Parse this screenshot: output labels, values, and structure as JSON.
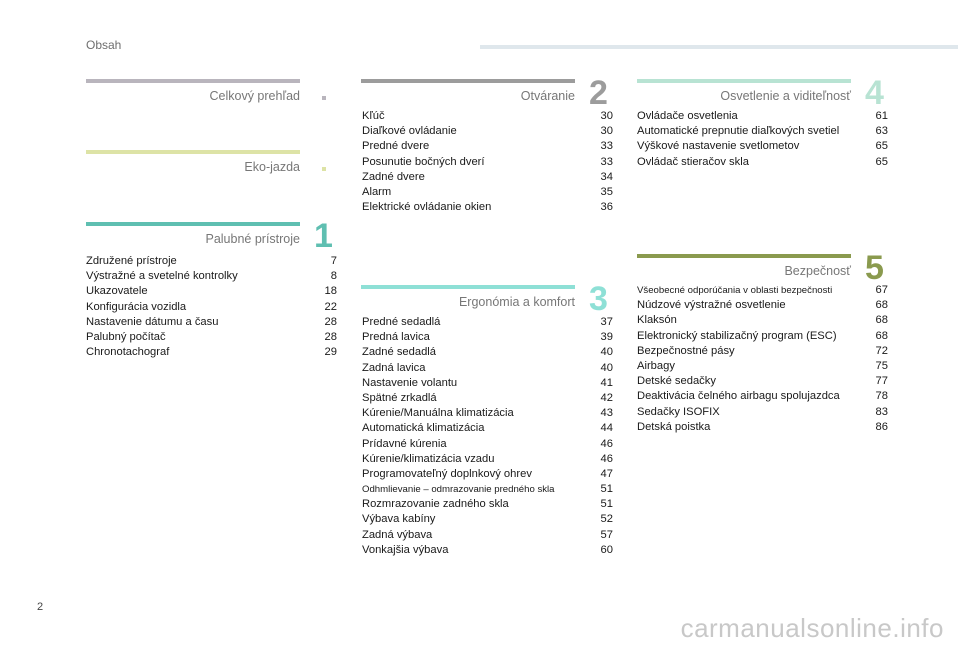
{
  "header": {
    "title": "Obsah"
  },
  "page_number": "2",
  "watermark": "carmanualsonline.info",
  "sections": {
    "overview": {
      "title": "Celkový prehľad",
      "color": "#b9b5bd"
    },
    "eco": {
      "title": "Eko-jazda",
      "color": "#dde3a6"
    },
    "s1": {
      "title": "Palubné prístroje",
      "number": "1",
      "color": "#5fbfb1",
      "items": [
        {
          "label": "Združené prístroje",
          "page": "7"
        },
        {
          "label": "Výstražné a svetelné kontrolky",
          "page": "8"
        },
        {
          "label": "Ukazovatele",
          "page": "18"
        },
        {
          "label": "Konfigurácia vozidla",
          "page": "22"
        },
        {
          "label": "Nastavenie dátumu a času",
          "page": "28"
        },
        {
          "label": "Palubný počítač",
          "page": "28"
        },
        {
          "label": "Chronotachograf",
          "page": "29"
        }
      ]
    },
    "s2": {
      "title": "Otváranie",
      "number": "2",
      "color": "#9c9c9c",
      "items": [
        {
          "label": "Kľúč",
          "page": "30"
        },
        {
          "label": "Diaľkové ovládanie",
          "page": "30"
        },
        {
          "label": "Predné dvere",
          "page": "33"
        },
        {
          "label": "Posunutie bočných dverí",
          "page": "33"
        },
        {
          "label": "Zadné dvere",
          "page": "34"
        },
        {
          "label": "Alarm",
          "page": "35"
        },
        {
          "label": "Elektrické ovládanie okien",
          "page": "36"
        }
      ]
    },
    "s3": {
      "title": "Ergonómia a komfort",
      "number": "3",
      "color": "#8ee0d6",
      "items": [
        {
          "label": "Predné sedadlá",
          "page": "37"
        },
        {
          "label": "Predná lavica",
          "page": "39"
        },
        {
          "label": "Zadné sedadlá",
          "page": "40"
        },
        {
          "label": "Zadná lavica",
          "page": "40"
        },
        {
          "label": "Nastavenie volantu",
          "page": "41"
        },
        {
          "label": "Spätné zrkadlá",
          "page": "42"
        },
        {
          "label": "Kúrenie/Manuálna klimatizácia",
          "page": "43"
        },
        {
          "label": "Automatická klimatizácia",
          "page": "44"
        },
        {
          "label": "Prídavné kúrenia",
          "page": "46"
        },
        {
          "label": "Kúrenie/klimatizácia vzadu",
          "page": "46"
        },
        {
          "label": "Programovateľný doplnkový ohrev",
          "page": "47"
        },
        {
          "label": "Odhmlievanie – odmrazovanie predného skla",
          "page": "51"
        },
        {
          "label": "Rozmrazovanie zadného skla",
          "page": "51"
        },
        {
          "label": "Výbava kabíny",
          "page": "52"
        },
        {
          "label": "Zadná výbava",
          "page": "57"
        },
        {
          "label": "Vonkajšia výbava",
          "page": "60"
        }
      ]
    },
    "s4": {
      "title": "Osvetlenie a viditeľnosť",
      "number": "4",
      "color": "#b8e3d3",
      "items": [
        {
          "label": "Ovládače osvetlenia",
          "page": "61"
        },
        {
          "label": "Automatické prepnutie diaľkových svetiel",
          "page": "63"
        },
        {
          "label": "Výškové nastavenie svetlometov",
          "page": "65"
        },
        {
          "label": "Ovládač stieračov skla",
          "page": "65"
        }
      ]
    },
    "s5": {
      "title": "Bezpečnosť",
      "number": "5",
      "color": "#8a9a4e",
      "items": [
        {
          "label": "Všeobecné odporúčania v oblasti bezpečnosti",
          "page": "67"
        },
        {
          "label": "Núdzové výstražné osvetlenie",
          "page": "68"
        },
        {
          "label": "Klaksón",
          "page": "68"
        },
        {
          "label": "Elektronický stabilizačný program (ESC)",
          "page": "68"
        },
        {
          "label": "Bezpečnostné pásy",
          "page": "72"
        },
        {
          "label": "Airbagy",
          "page": "75"
        },
        {
          "label": "Detské sedačky",
          "page": "77"
        },
        {
          "label": "Deaktivácia čelného airbagu spolujazdca",
          "page": "78"
        },
        {
          "label": "Sedačky ISOFIX",
          "page": "83"
        },
        {
          "label": "Detská poistka",
          "page": "86"
        }
      ]
    }
  }
}
